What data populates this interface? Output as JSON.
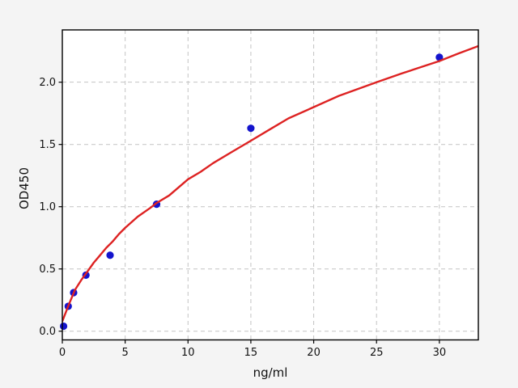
{
  "figure": {
    "background": "#f4f4f4",
    "plot_background": "#ffffff",
    "spine_color": "#000000",
    "grid_color": "#c3c3c3",
    "tick_color": "#111111"
  },
  "chart_data": {
    "type": "scatter",
    "title": "",
    "xlabel": "ng/ml",
    "ylabel": "OD450",
    "xlim": [
      0,
      33.1
    ],
    "ylim": [
      -0.07,
      2.42
    ],
    "x_ticks": [
      {
        "value": 0,
        "label": "0"
      },
      {
        "value": 5,
        "label": "5"
      },
      {
        "value": 10,
        "label": "10"
      },
      {
        "value": 15,
        "label": "15"
      },
      {
        "value": 20,
        "label": "20"
      },
      {
        "value": 25,
        "label": "25"
      },
      {
        "value": 30,
        "label": "30"
      }
    ],
    "y_ticks": [
      {
        "value": 0,
        "label": "0.0"
      },
      {
        "value": 0.5,
        "label": "0.5"
      },
      {
        "value": 1,
        "label": "1.0"
      },
      {
        "value": 1.5,
        "label": "1.5"
      },
      {
        "value": 2,
        "label": "2.0"
      }
    ],
    "grid": {
      "on": true,
      "style": "dashed",
      "legend_position": "none"
    },
    "series": [
      {
        "name": "standard-points",
        "type": "scatter",
        "color": "#1414cd",
        "marker": "circle",
        "marker_radius": 4.6,
        "points": [
          {
            "x": 0.1,
            "y": 0.04
          },
          {
            "x": 0.47,
            "y": 0.2
          },
          {
            "x": 0.9,
            "y": 0.31
          },
          {
            "x": 1.88,
            "y": 0.45
          },
          {
            "x": 3.8,
            "y": 0.61
          },
          {
            "x": 7.5,
            "y": 1.02
          },
          {
            "x": 15,
            "y": 1.63
          },
          {
            "x": 30,
            "y": 2.2
          }
        ]
      },
      {
        "name": "fit-curve",
        "type": "line",
        "color": "#dd2222",
        "width": 2.4,
        "x": [
          0,
          0.5,
          1,
          1.5,
          2,
          2.5,
          3,
          3.5,
          4,
          4.5,
          5,
          6,
          7,
          7.5,
          8.5,
          10,
          11,
          12,
          13.5,
          15,
          16.5,
          18,
          20,
          22,
          25,
          27,
          30,
          31.5,
          33.1
        ],
        "y": [
          0.08,
          0.21,
          0.33,
          0.41,
          0.48,
          0.55,
          0.61,
          0.67,
          0.72,
          0.78,
          0.83,
          0.92,
          0.99,
          1.03,
          1.09,
          1.22,
          1.28,
          1.35,
          1.44,
          1.53,
          1.62,
          1.71,
          1.8,
          1.89,
          2.0,
          2.07,
          2.17,
          2.23,
          2.29
        ]
      }
    ]
  }
}
